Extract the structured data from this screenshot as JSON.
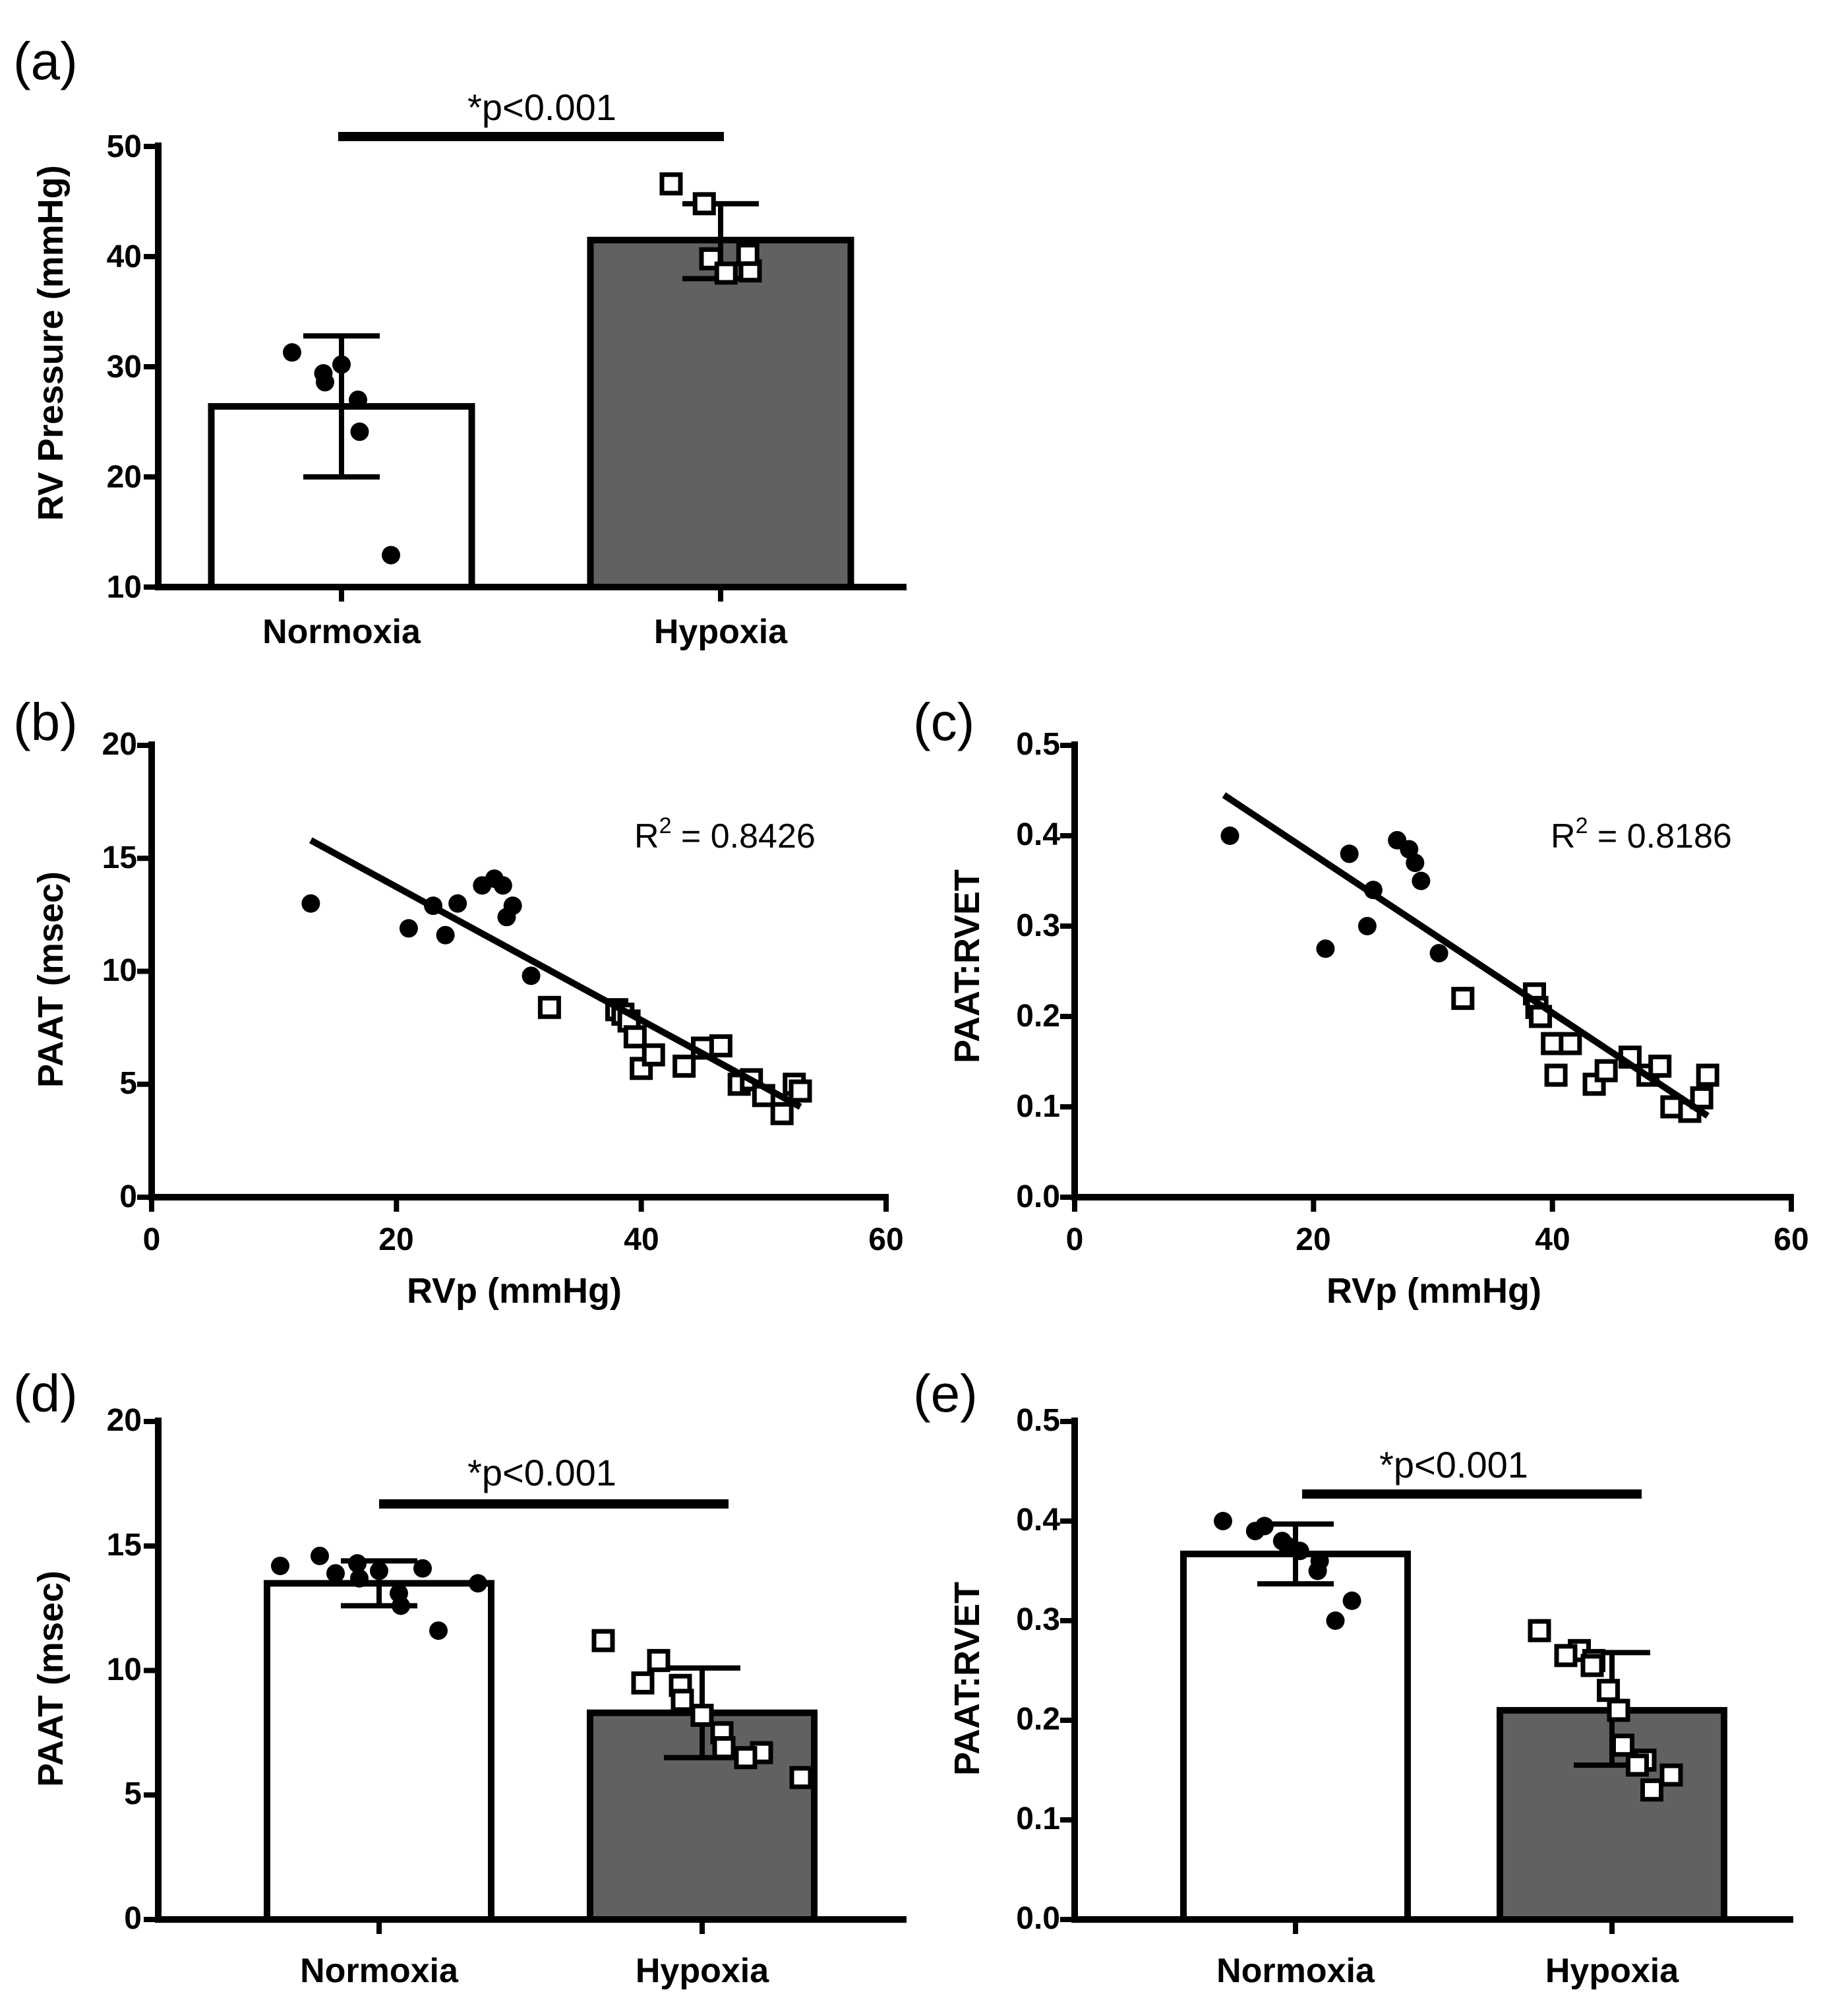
{
  "colors": {
    "ink": "#000000",
    "hypoxia_fill": "#616161",
    "normoxia_fill": "#ffffff",
    "marker_fill": "#ffffff"
  },
  "chart_data": [
    {
      "id": "a",
      "panel_label": "(a)",
      "type": "bar",
      "ylabel": "RV Pressure (mmHg)",
      "ylim": [
        10,
        50
      ],
      "yticks": [
        "10",
        "20",
        "30",
        "40",
        "50"
      ],
      "categories": [
        "Normoxia",
        "Hypoxia"
      ],
      "significance": "*p<0.001",
      "series": [
        {
          "name": "Normoxia",
          "mean": 26.4,
          "err_low": 20.0,
          "err_high": 32.8,
          "marker": "filled-circle",
          "points": [
            31.3,
            29.4,
            28.6,
            30.2,
            27.0,
            24.1,
            12.9
          ]
        },
        {
          "name": "Hypoxia",
          "mean": 41.5,
          "err_low": 38.0,
          "err_high": 44.8,
          "marker": "open-square",
          "points": [
            46.6,
            44.8,
            39.8,
            38.5,
            38.7,
            40.2
          ]
        }
      ]
    },
    {
      "id": "b",
      "panel_label": "(b)",
      "type": "scatter",
      "xlabel": "RVp (mmHg)",
      "ylabel": "PAAT (msec)",
      "xlim": [
        0,
        60
      ],
      "ylim": [
        0,
        20
      ],
      "xticks": [
        "0",
        "20",
        "40",
        "60"
      ],
      "yticks": [
        "0",
        "5",
        "10",
        "15",
        "20"
      ],
      "annotation": {
        "prefix": "R",
        "sup": "2",
        "text": " = 0.8426"
      },
      "trendline": [
        [
          13,
          15.8
        ],
        [
          53,
          4.0
        ]
      ],
      "series": [
        {
          "name": "Normoxia",
          "marker": "filled-circle",
          "points": [
            [
              13.0,
              13.0
            ],
            [
              21.0,
              11.9
            ],
            [
              23.0,
              12.9
            ],
            [
              24.0,
              11.6
            ],
            [
              25.0,
              13.0
            ],
            [
              27.0,
              13.8
            ],
            [
              28.0,
              14.1
            ],
            [
              28.7,
              13.8
            ],
            [
              29.0,
              12.4
            ],
            [
              29.5,
              12.9
            ],
            [
              31.0,
              9.8
            ]
          ]
        },
        {
          "name": "Hypoxia",
          "marker": "open-square",
          "points": [
            [
              32.5,
              8.4
            ],
            [
              38.0,
              8.3
            ],
            [
              38.5,
              8.1
            ],
            [
              39.0,
              7.8
            ],
            [
              39.5,
              7.1
            ],
            [
              40.0,
              5.7
            ],
            [
              41.0,
              6.3
            ],
            [
              43.5,
              5.8
            ],
            [
              45.0,
              6.6
            ],
            [
              46.5,
              6.7
            ],
            [
              48.0,
              5.0
            ],
            [
              49.0,
              5.2
            ],
            [
              50.0,
              4.5
            ],
            [
              51.5,
              3.7
            ],
            [
              52.5,
              5.0
            ],
            [
              53.0,
              4.7
            ]
          ]
        }
      ]
    },
    {
      "id": "c",
      "panel_label": "(c)",
      "type": "scatter",
      "xlabel": "RVp (mmHg)",
      "ylabel": "PAAT:RVET",
      "xlim": [
        0,
        60
      ],
      "ylim": [
        0,
        0.5
      ],
      "xticks": [
        "0",
        "20",
        "40",
        "60"
      ],
      "yticks": [
        "0.0",
        "0.1",
        "0.2",
        "0.3",
        "0.4",
        "0.5"
      ],
      "annotation": {
        "prefix": "R",
        "sup": "2",
        "text": " = 0.8186"
      },
      "trendline": [
        [
          12.5,
          0.445
        ],
        [
          53,
          0.09
        ]
      ],
      "series": [
        {
          "name": "Normoxia",
          "marker": "filled-circle",
          "points": [
            [
              13.0,
              0.4
            ],
            [
              21.0,
              0.275
            ],
            [
              23.0,
              0.38
            ],
            [
              24.5,
              0.3
            ],
            [
              25.0,
              0.34
            ],
            [
              27.0,
              0.395
            ],
            [
              28.0,
              0.385
            ],
            [
              28.5,
              0.37
            ],
            [
              29.0,
              0.35
            ],
            [
              30.5,
              0.27
            ]
          ]
        },
        {
          "name": "Hypoxia",
          "marker": "open-square",
          "points": [
            [
              32.5,
              0.22
            ],
            [
              38.5,
              0.225
            ],
            [
              38.7,
              0.21
            ],
            [
              39.0,
              0.2
            ],
            [
              40.0,
              0.17
            ],
            [
              40.3,
              0.135
            ],
            [
              41.5,
              0.17
            ],
            [
              43.5,
              0.125
            ],
            [
              44.5,
              0.14
            ],
            [
              46.5,
              0.155
            ],
            [
              48.0,
              0.135
            ],
            [
              49.0,
              0.145
            ],
            [
              50.0,
              0.1
            ],
            [
              51.5,
              0.095
            ],
            [
              52.5,
              0.11
            ],
            [
              53.0,
              0.135
            ]
          ]
        }
      ]
    },
    {
      "id": "d",
      "panel_label": "(d)",
      "type": "bar",
      "ylabel": "PAAT (msec)",
      "ylim": [
        0,
        20
      ],
      "yticks": [
        "0",
        "5",
        "10",
        "15",
        "20"
      ],
      "categories": [
        "Normoxia",
        "Hypoxia"
      ],
      "significance": "*p<0.001",
      "series": [
        {
          "name": "Normoxia",
          "mean": 13.5,
          "err_low": 12.6,
          "err_high": 14.4,
          "marker": "filled-circle",
          "points": [
            14.2,
            13.9,
            14.6,
            14.3,
            13.7,
            14.0,
            13.1,
            12.6,
            11.6,
            14.1,
            13.5
          ]
        },
        {
          "name": "Hypoxia",
          "mean": 8.3,
          "err_low": 6.5,
          "err_high": 10.1,
          "marker": "open-square",
          "points": [
            11.2,
            10.4,
            9.5,
            9.4,
            8.8,
            8.2,
            7.5,
            6.9,
            6.7,
            6.5,
            5.7
          ]
        }
      ]
    },
    {
      "id": "e",
      "panel_label": "(e)",
      "type": "bar",
      "ylabel": "PAAT:RVET",
      "ylim": [
        0,
        0.5
      ],
      "yticks": [
        "0.0",
        "0.1",
        "0.2",
        "0.3",
        "0.4",
        "0.5"
      ],
      "categories": [
        "Normoxia",
        "Hypoxia"
      ],
      "significance": "*p<0.001",
      "series": [
        {
          "name": "Normoxia",
          "mean": 0.367,
          "err_low": 0.337,
          "err_high": 0.397,
          "marker": "filled-circle",
          "points": [
            0.4,
            0.395,
            0.39,
            0.38,
            0.375,
            0.37,
            0.36,
            0.35,
            0.32,
            0.3
          ]
        },
        {
          "name": "Hypoxia",
          "mean": 0.21,
          "err_low": 0.155,
          "err_high": 0.268,
          "marker": "open-square",
          "points": [
            0.29,
            0.27,
            0.265,
            0.26,
            0.255,
            0.23,
            0.21,
            0.175,
            0.16,
            0.155,
            0.145,
            0.13
          ]
        }
      ]
    }
  ]
}
